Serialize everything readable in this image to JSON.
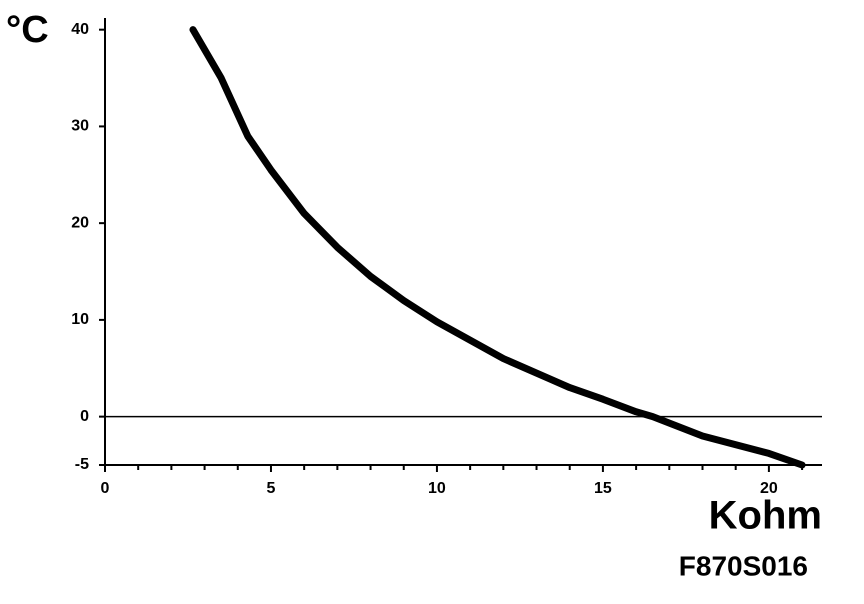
{
  "chart_data": {
    "type": "line",
    "y_label": "°C",
    "x_label": "Kohm",
    "annotation": "F870S016",
    "x": [
      2.65,
      3.5,
      4.3,
      5,
      6,
      7,
      8,
      9,
      10,
      12,
      14,
      15,
      16,
      16.5,
      18,
      20,
      21
    ],
    "values": [
      40,
      35,
      29,
      25.5,
      21,
      17.5,
      14.5,
      12,
      9.8,
      6,
      3,
      1.8,
      0.5,
      0,
      -2,
      -3.8,
      -5
    ],
    "color": "#000000",
    "xlim": [
      0,
      21.6
    ],
    "xticks": [
      0,
      5,
      10,
      15,
      20
    ],
    "xminorticks": [
      1,
      2,
      3,
      4,
      6,
      7,
      8,
      9,
      11,
      12,
      13,
      14,
      16,
      17,
      18,
      19,
      21
    ],
    "ylim": [
      -5,
      41
    ],
    "yticks": [
      -5,
      0,
      10,
      20,
      30,
      40
    ],
    "zero_line": true
  }
}
